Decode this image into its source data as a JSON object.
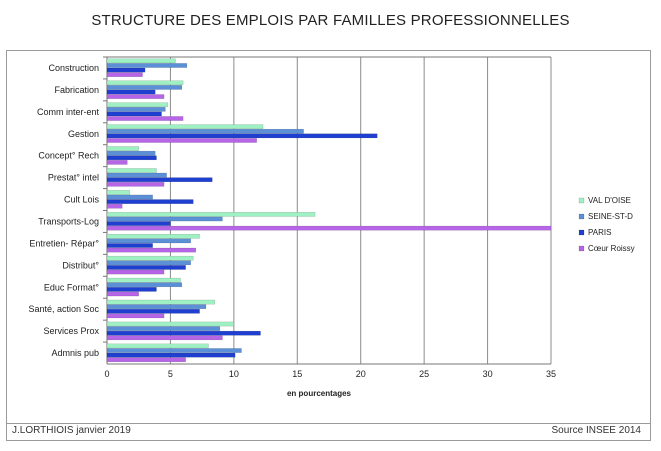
{
  "header": {
    "title": "STRUCTURE DES EMPLOIS PAR FAMILLES PROFESSIONNELLES"
  },
  "footer": {
    "author": "J.LORTHIOIS janvier 2019",
    "source": "Source INSEE 2014"
  },
  "chart_data": {
    "type": "bar",
    "orientation": "horizontal",
    "title": "STRUCTURE DES EMPLOIS PAR FAMILLES PROFESSIONNELLES",
    "xlabel": "en pourcentages",
    "ylabel": "",
    "xlim": [
      0,
      35
    ],
    "xticks": [
      0,
      5,
      10,
      15,
      20,
      25,
      30,
      35
    ],
    "grid": "vertical",
    "legend_position": "right",
    "categories": [
      "Construction",
      "Fabrication",
      "Comm inter-ent",
      "Gestion",
      "Concept° Rech",
      "Prestat° intel",
      "Cult Lois",
      "Transports-Log",
      "Entretien- Répar°",
      "Distribut°",
      "Educ Format°",
      "Santé, action Soc",
      "Services Prox",
      "Admnis pub"
    ],
    "series": [
      {
        "name": "VAL D'OISE",
        "color": "#9ff0c2",
        "values": [
          5.4,
          6.0,
          4.8,
          12.3,
          2.5,
          3.9,
          1.8,
          16.4,
          7.3,
          6.8,
          5.8,
          8.5,
          10.0,
          8.0
        ]
      },
      {
        "name": "SEINE-ST-D",
        "color": "#5b8fd6",
        "values": [
          6.3,
          5.9,
          4.6,
          15.5,
          3.8,
          4.7,
          3.6,
          9.1,
          6.6,
          6.6,
          5.9,
          7.8,
          8.9,
          10.6
        ]
      },
      {
        "name": "PARIS",
        "color": "#1f3fd0",
        "values": [
          3.0,
          3.8,
          4.3,
          21.3,
          3.9,
          8.3,
          6.8,
          5.0,
          3.6,
          6.2,
          3.9,
          7.3,
          12.1,
          10.1
        ]
      },
      {
        "name": "Cœur Roissy",
        "color": "#b565e6",
        "values": [
          2.8,
          4.5,
          6.0,
          11.8,
          1.6,
          4.5,
          1.2,
          35.0,
          7.0,
          4.5,
          2.5,
          4.5,
          9.1,
          6.2
        ]
      }
    ]
  }
}
